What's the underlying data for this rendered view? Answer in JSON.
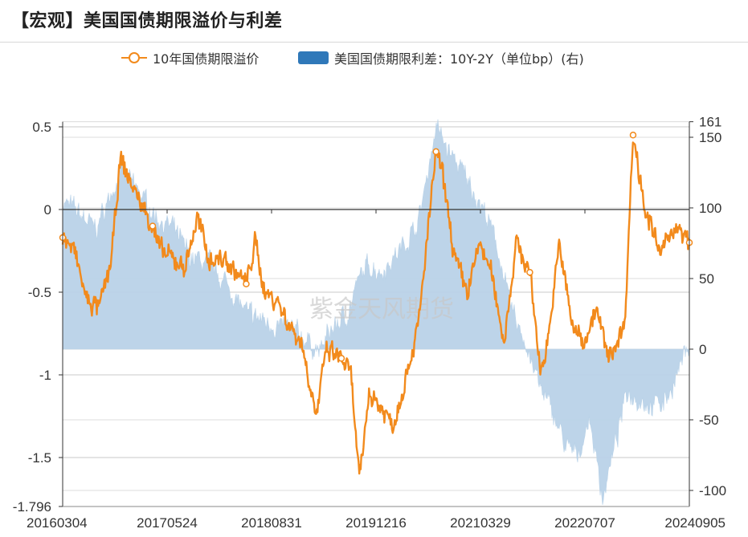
{
  "page": {
    "title": "【宏观】美国国债期限溢价与利差",
    "watermark": "紫金天风期货"
  },
  "legend": {
    "line_label": "10年国债期限溢价",
    "area_label": "美国国债期限利差：10Y-2Y（单位bp）(右)"
  },
  "colors": {
    "line": "#f28a1c",
    "area": "#b9d2e8",
    "legend_area": "#2f78b9",
    "axis": "#333333",
    "grid": "#c8c8c8"
  },
  "chart_data": {
    "type": "line",
    "title": "【宏观】美国国债期限溢价与利差",
    "x_tick_labels": [
      "20160304",
      "20170524",
      "20180831",
      "20191216",
      "20210329",
      "20220707",
      "20240905"
    ],
    "x_range": [
      "2016-03-04",
      "2024-09-05"
    ],
    "left_axis": {
      "ylim": [
        -1.796,
        0.5
      ],
      "tick_labels": [
        "0.5",
        "0",
        "-0.5",
        "-1",
        "-1.5",
        "-1.796"
      ],
      "tick_values": [
        0.5,
        0,
        -0.5,
        -1,
        -1.5,
        -1.796
      ]
    },
    "right_axis": {
      "ylim": [
        -108,
        161
      ],
      "tick_labels": [
        "161",
        "150",
        "100",
        "50",
        "0",
        "-50",
        "-100"
      ],
      "tick_values": [
        161,
        150,
        100,
        50,
        0,
        -50,
        -100
      ]
    },
    "grid": true,
    "legend_position": "top",
    "series": [
      {
        "name": "10年国债期限溢价",
        "axis": "left",
        "kind": "line",
        "x": [
          "2016-03-04",
          "2016-05-01",
          "2016-07-01",
          "2016-09-01",
          "2016-11-01",
          "2016-12-15",
          "2017-03-01",
          "2017-05-24",
          "2017-07-01",
          "2017-09-01",
          "2017-11-01",
          "2018-01-01",
          "2018-03-01",
          "2018-05-15",
          "2018-08-31",
          "2018-10-15",
          "2018-12-01",
          "2019-02-01",
          "2019-04-01",
          "2019-06-01",
          "2019-08-15",
          "2019-10-01",
          "2019-12-16",
          "2020-02-01",
          "2020-03-15",
          "2020-05-01",
          "2020-07-01",
          "2020-09-01",
          "2020-11-01",
          "2021-01-01",
          "2021-03-29",
          "2021-05-01",
          "2021-07-01",
          "2021-09-01",
          "2021-11-01",
          "2022-01-01",
          "2022-03-01",
          "2022-05-01",
          "2022-07-07",
          "2022-09-01",
          "2022-10-20",
          "2022-12-01",
          "2023-02-01",
          "2023-04-01",
          "2023-06-01",
          "2023-08-01",
          "2023-10-20",
          "2023-12-01",
          "2024-02-01",
          "2024-04-15",
          "2024-06-15",
          "2024-09-05"
        ],
        "values": [
          -0.17,
          -0.25,
          -0.55,
          -0.6,
          -0.3,
          0.3,
          0.1,
          -0.1,
          -0.25,
          -0.3,
          -0.35,
          -0.05,
          -0.3,
          -0.3,
          -0.45,
          -0.2,
          -0.5,
          -0.55,
          -0.7,
          -0.8,
          -1.25,
          -0.85,
          -0.9,
          -1.0,
          -1.65,
          -1.1,
          -1.2,
          -1.3,
          -1.0,
          -0.7,
          0.35,
          0.2,
          -0.3,
          -0.5,
          -0.2,
          -0.4,
          -0.8,
          -0.2,
          -0.38,
          -1.0,
          -0.65,
          -0.2,
          -0.7,
          -0.8,
          -0.6,
          -0.9,
          -0.7,
          0.45,
          0.0,
          -0.28,
          -0.1,
          -0.2
        ]
      },
      {
        "name": "美国国债期限利差：10Y-2Y（单位bp）(右)",
        "axis": "right",
        "kind": "area",
        "x": [
          "2016-03-04",
          "2016-06-01",
          "2016-08-15",
          "2016-12-15",
          "2017-03-01",
          "2017-06-01",
          "2017-09-01",
          "2017-12-01",
          "2018-03-01",
          "2018-06-01",
          "2018-09-01",
          "2018-12-01",
          "2019-03-01",
          "2019-06-01",
          "2019-08-27",
          "2019-11-01",
          "2020-01-15",
          "2020-03-15",
          "2020-05-01",
          "2020-07-01",
          "2020-10-01",
          "2021-01-01",
          "2021-03-29",
          "2021-06-01",
          "2021-09-01",
          "2021-12-01",
          "2022-02-01",
          "2022-04-01",
          "2022-06-01",
          "2022-07-07",
          "2022-09-01",
          "2022-11-01",
          "2023-01-01",
          "2023-03-01",
          "2023-05-01",
          "2023-07-03",
          "2023-09-01",
          "2023-11-01",
          "2024-01-01",
          "2024-03-01",
          "2024-05-01",
          "2024-07-01",
          "2024-09-05"
        ],
        "values": [
          105,
          95,
          85,
          125,
          115,
          95,
          85,
          65,
          60,
          45,
          25,
          20,
          15,
          10,
          -2,
          15,
          25,
          50,
          60,
          55,
          70,
          90,
          158,
          140,
          120,
          95,
          70,
          30,
          10,
          -5,
          -30,
          -45,
          -70,
          -75,
          -50,
          -105,
          -70,
          -30,
          -35,
          -40,
          -38,
          -20,
          5
        ]
      }
    ]
  }
}
